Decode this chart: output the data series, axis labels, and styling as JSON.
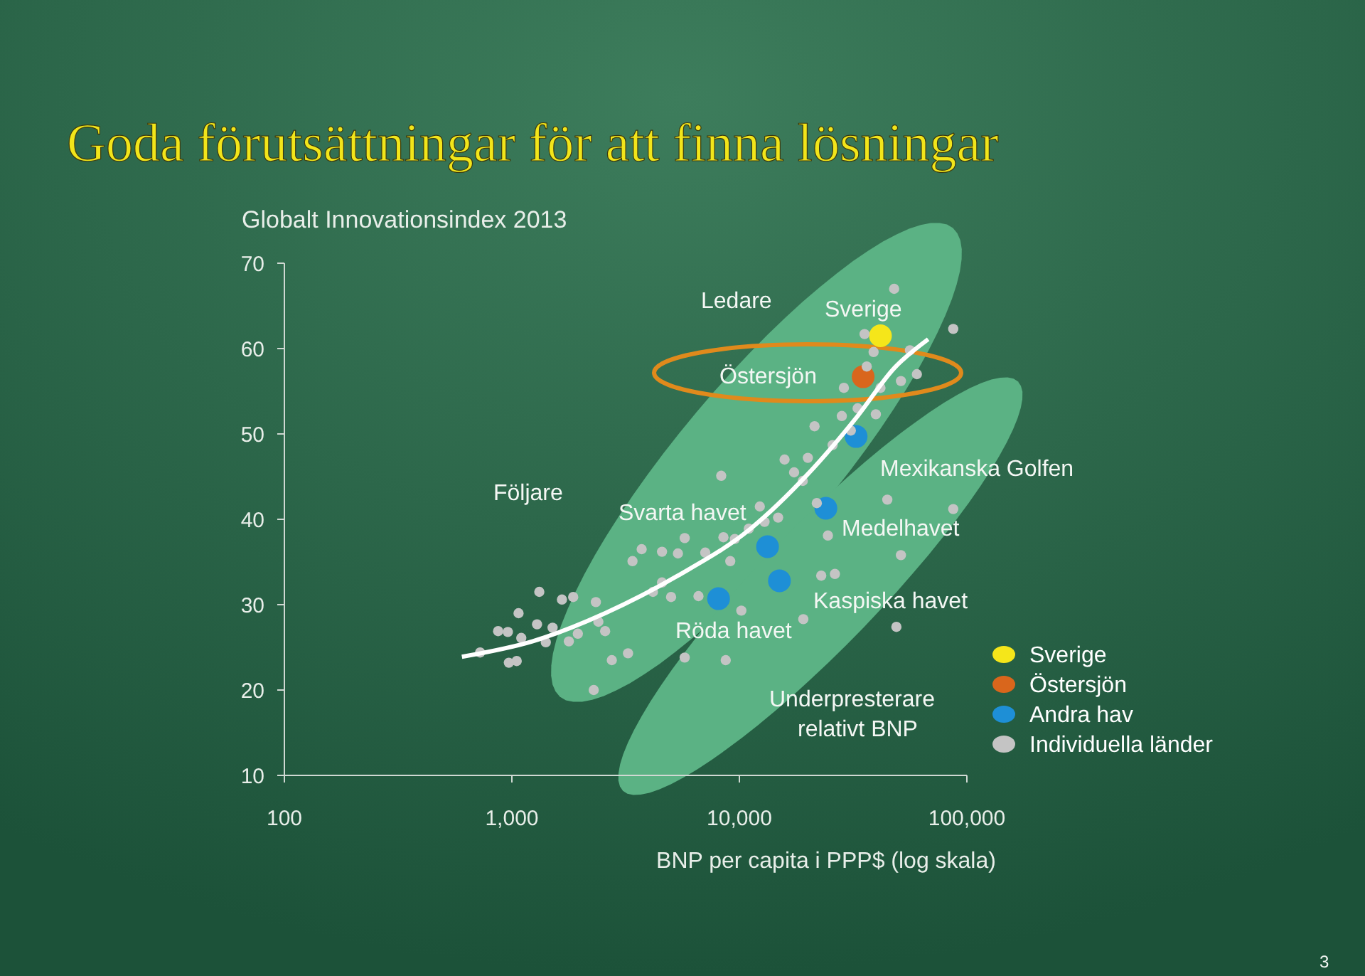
{
  "chart_data": {
    "type": "scatter",
    "title": "Goda förutsättningar för att finna lösningar",
    "ylabel": "Globalt Innovationsindex 2013",
    "xlabel": "BNP per capita i PPP$ (log skala)",
    "log": "x",
    "xlim": [
      100,
      100000
    ],
    "ylim": [
      10,
      70
    ],
    "xticks": [
      {
        "value": 100,
        "label": "100"
      },
      {
        "value": 1000,
        "label": "1,000"
      },
      {
        "value": 10000,
        "label": "10,000"
      },
      {
        "value": 100000,
        "label": "100,000"
      }
    ],
    "yticks": [
      10,
      20,
      30,
      40,
      50,
      60,
      70
    ],
    "grid": false,
    "legend": "right",
    "marker": "circle",
    "series": [
      {
        "name": "Sverige",
        "color": "#f5e61a",
        "x": [
          41700
        ],
        "values": [
          61.5
        ]
      },
      {
        "name": "Östersjön",
        "color": "#d9661c",
        "x": [
          35000
        ],
        "values": [
          56.7
        ]
      },
      {
        "name": "Andra hav",
        "color": "#1e8fd6",
        "x": [
          32600,
          24000,
          13300,
          15000,
          8100
        ],
        "values": [
          49.7,
          41.3,
          36.8,
          32.8,
          30.7
        ]
      },
      {
        "name": "Individuella länder",
        "color": "#c4c4c4",
        "x": [
          725,
          870,
          960,
          970,
          1050,
          1070,
          1100,
          1290,
          1320,
          1410,
          1510,
          1660,
          1780,
          1860,
          1950,
          2340,
          2290,
          2400,
          2570,
          2750,
          3240,
          3390,
          3720,
          4170,
          4570,
          4570,
          5370,
          5750,
          5010,
          5750,
          6610,
          7080,
          8320,
          8510,
          8710,
          9120,
          9550,
          10200,
          11000,
          12300,
          12900,
          14800,
          15800,
          19100,
          17400,
          19000,
          20000,
          21400,
          21900,
          22900,
          24500,
          25700,
          26300,
          28200,
          28800,
          30900,
          33100,
          35500,
          36300,
          38900,
          39800,
          41700,
          44700,
          47900,
          51300,
          51300,
          56200,
          60300,
          87100,
          87100,
          49000
        ],
        "values": [
          24.4,
          26.9,
          26.8,
          23.2,
          23.4,
          29.0,
          26.1,
          27.7,
          31.5,
          25.6,
          27.3,
          30.6,
          25.7,
          30.9,
          26.6,
          30.3,
          20.0,
          28.0,
          26.9,
          23.5,
          24.3,
          35.1,
          36.5,
          31.5,
          32.6,
          36.2,
          36.0,
          37.8,
          30.9,
          23.8,
          31.0,
          36.1,
          45.1,
          37.9,
          23.5,
          35.1,
          37.7,
          29.3,
          38.9,
          41.5,
          39.7,
          40.2,
          47.0,
          28.3,
          45.5,
          44.5,
          47.2,
          50.9,
          41.9,
          33.4,
          38.1,
          48.7,
          33.6,
          52.1,
          55.4,
          50.4,
          53.0,
          61.7,
          57.9,
          59.6,
          52.3,
          55.4,
          42.3,
          67.0,
          35.8,
          56.2,
          59.8,
          57.0,
          41.2,
          62.3,
          27.4
        ]
      },
      {
        "type": "line",
        "marker": "none",
        "color": "#ffffff",
        "x": [
          603,
          1230,
          2570,
          5370,
          11200,
          20000,
          33100,
          47900,
          67600
        ],
        "values": [
          23.9,
          25.7,
          29.0,
          33.4,
          38.9,
          45.3,
          52.1,
          57.7,
          61.1
        ]
      }
    ],
    "annotations": [
      "Ledare",
      "Sverige",
      "Östersjön",
      "Följare",
      "Svarta havet",
      "Röda havet",
      "Kaspiska havet",
      "Medelhavet",
      "Mexikanska Golfen",
      "Underpresterare",
      "relativt BNP",
      "3"
    ]
  }
}
